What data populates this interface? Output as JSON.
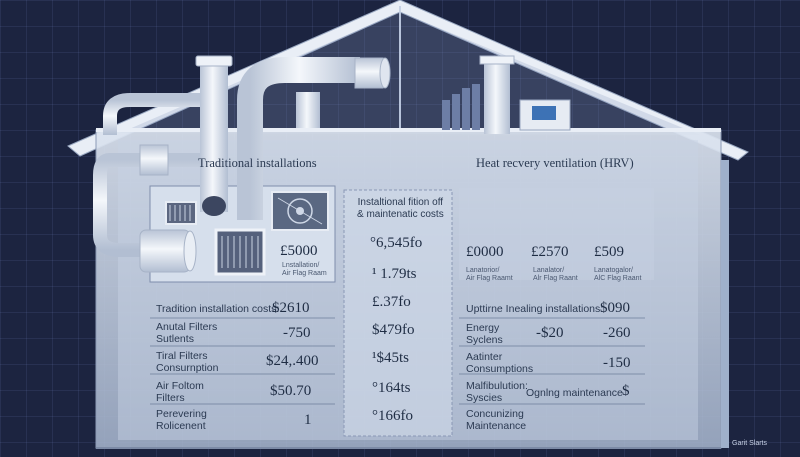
{
  "left_panel": {
    "title": "Traditional installations",
    "feature_value": "£5000",
    "feature_caption": [
      "Lnstallation/",
      "Air Flag Raam"
    ],
    "rows": [
      {
        "label": "Tradition installation costs:",
        "value": "$2610"
      },
      {
        "label": "Anutal Filters\nSutlents",
        "value": "-750"
      },
      {
        "label": "Tiral Filters\nConsurnption",
        "value": "$24,.400"
      },
      {
        "label": "Air Foltom\nFilters",
        "value": "$50.70"
      },
      {
        "label": "Perevering\nRolicenent",
        "value": "1"
      }
    ]
  },
  "middle_panel": {
    "title": "Instaltional fition off\n& maintenatic costs",
    "values": [
      "°6,545fo",
      "¹ 1.79ts",
      "£.37fo",
      "$479fo",
      "¹$45ts",
      "°164ts",
      "°166fo"
    ]
  },
  "right_panel": {
    "title": "Heat recvery ventilation (HRV)",
    "feature_values": [
      {
        "value": "£0000",
        "caption": "Lanatorior/\nAir Flag Raamt"
      },
      {
        "value": "£2570",
        "caption": "Lanalator/\nAlr Flag Raant"
      },
      {
        "value": "£509",
        "caption": "Lanatogalor/\nAlC Flag Raant"
      }
    ],
    "rows": [
      {
        "label": "Upttirne Inealing installations:",
        "value": "$090"
      },
      {
        "label": "Energy\nSyclens",
        "value": "-$20",
        "value2": "-260"
      },
      {
        "label": "Aatinter\nConsumptions",
        "value": "",
        "value2": "-150"
      },
      {
        "label": "Malfibulution:\nSyscies",
        "value": "Ognlng maintenance",
        "value2": "$"
      },
      {
        "label": "Concunizing\nMaintenance",
        "value": ""
      }
    ]
  },
  "footer_caption": "Garit Slarts",
  "colors": {
    "background": "#1c2440",
    "house_glass": "#c3cfe2",
    "pipes": "#e8edf5"
  }
}
